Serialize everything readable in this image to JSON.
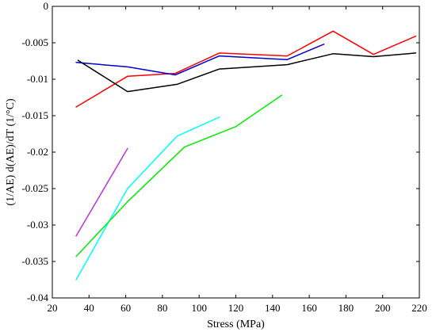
{
  "chart_data": {
    "type": "line",
    "title": "",
    "xlabel": "Stress (MPa)",
    "ylabel": "(1/AE) d(AE)/dT (1/°C)",
    "xlim": [
      20,
      220
    ],
    "ylim": [
      -0.04,
      0
    ],
    "grid": false,
    "xticks": [
      "20",
      "40",
      "60",
      "80",
      "100",
      "120",
      "140",
      "160",
      "180",
      "200",
      "220"
    ],
    "yticks": [
      "0",
      "-0.005",
      "-0.01",
      "-0.015",
      "-0.02",
      "-0.025",
      "-0.03",
      "-0.035",
      "-0.04"
    ],
    "series": [
      {
        "color": "#ff0000",
        "x": [
          33,
          61,
          87,
          111,
          148,
          173,
          195,
          218
        ],
        "y": [
          -0.0138,
          -0.0096,
          -0.0092,
          -0.0064,
          -0.0068,
          -0.0034,
          -0.0066,
          -0.0041
        ]
      },
      {
        "color": "#0000cc",
        "x": [
          33,
          61,
          87,
          111,
          148,
          168
        ],
        "y": [
          -0.0077,
          -0.0083,
          -0.0094,
          -0.0068,
          -0.0073,
          -0.0052
        ]
      },
      {
        "color": "#000000",
        "x": [
          34,
          61,
          88,
          111,
          148,
          173,
          195,
          218
        ],
        "y": [
          -0.0074,
          -0.0117,
          -0.0107,
          -0.0086,
          -0.008,
          -0.0065,
          -0.0069,
          -0.0064
        ]
      },
      {
        "color": "#00ffff",
        "x": [
          33,
          61,
          88,
          111
        ],
        "y": [
          -0.0375,
          -0.025,
          -0.0178,
          -0.0152
        ]
      },
      {
        "color": "#00ee00",
        "x": [
          33,
          61,
          92,
          120,
          145
        ],
        "y": [
          -0.0343,
          -0.0268,
          -0.0193,
          -0.0165,
          -0.0122
        ]
      },
      {
        "color": "#c030e0",
        "x": [
          33,
          61
        ],
        "y": [
          -0.0315,
          -0.0195
        ]
      }
    ]
  }
}
